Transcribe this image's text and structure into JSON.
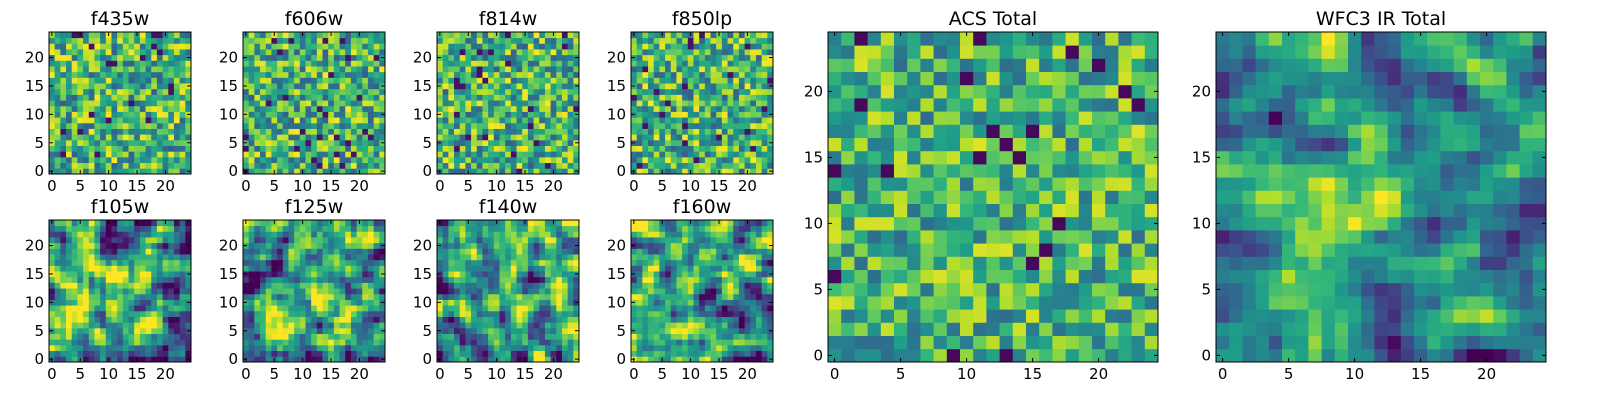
{
  "figure": {
    "background": "#ffffff",
    "colormap": "viridis"
  },
  "chart_data": [
    {
      "type": "heatmap",
      "title": "f435w",
      "xticks": [
        0,
        5,
        10,
        15,
        20
      ],
      "yticks": [
        0,
        5,
        10,
        15,
        20
      ],
      "xlim": [
        0,
        24
      ],
      "ylim": [
        0,
        24
      ],
      "seed": 11,
      "kind": "noise",
      "panel": "small-1"
    },
    {
      "type": "heatmap",
      "title": "f606w",
      "xticks": [
        0,
        5,
        10,
        15,
        20
      ],
      "yticks": [
        0,
        5,
        10,
        15,
        20
      ],
      "xlim": [
        0,
        24
      ],
      "ylim": [
        0,
        24
      ],
      "seed": 23,
      "kind": "noise",
      "panel": "small-2"
    },
    {
      "type": "heatmap",
      "title": "f814w",
      "xticks": [
        0,
        5,
        10,
        15,
        20
      ],
      "yticks": [
        0,
        5,
        10,
        15,
        20
      ],
      "xlim": [
        0,
        24
      ],
      "ylim": [
        0,
        24
      ],
      "seed": 37,
      "kind": "noise",
      "panel": "small-3"
    },
    {
      "type": "heatmap",
      "title": "f850lp",
      "xticks": [
        0,
        5,
        10,
        15,
        20
      ],
      "yticks": [
        0,
        5,
        10,
        15,
        20
      ],
      "xlim": [
        0,
        24
      ],
      "ylim": [
        0,
        24
      ],
      "seed": 41,
      "kind": "noise",
      "panel": "small-4"
    },
    {
      "type": "heatmap",
      "title": "f105w",
      "xticks": [
        0,
        5,
        10,
        15,
        20
      ],
      "yticks": [
        0,
        5,
        10,
        15,
        20
      ],
      "xlim": [
        0,
        24
      ],
      "ylim": [
        0,
        24
      ],
      "seed": 53,
      "kind": "smooth",
      "panel": "small-5"
    },
    {
      "type": "heatmap",
      "title": "f125w",
      "xticks": [
        0,
        5,
        10,
        15,
        20
      ],
      "yticks": [
        0,
        5,
        10,
        15,
        20
      ],
      "xlim": [
        0,
        24
      ],
      "ylim": [
        0,
        24
      ],
      "seed": 67,
      "kind": "smooth",
      "panel": "small-6"
    },
    {
      "type": "heatmap",
      "title": "f140w",
      "xticks": [
        0,
        5,
        10,
        15,
        20
      ],
      "yticks": [
        0,
        5,
        10,
        15,
        20
      ],
      "xlim": [
        0,
        24
      ],
      "ylim": [
        0,
        24
      ],
      "seed": 79,
      "kind": "smooth",
      "panel": "small-7"
    },
    {
      "type": "heatmap",
      "title": "f160w",
      "xticks": [
        0,
        5,
        10,
        15,
        20
      ],
      "yticks": [
        0,
        5,
        10,
        15,
        20
      ],
      "xlim": [
        0,
        24
      ],
      "ylim": [
        0,
        24
      ],
      "seed": 83,
      "kind": "smooth",
      "panel": "small-8"
    },
    {
      "type": "heatmap",
      "title": "ACS Total",
      "xticks": [
        0,
        5,
        10,
        15,
        20
      ],
      "yticks": [
        0,
        5,
        10,
        15,
        20
      ],
      "xlim": [
        0,
        24
      ],
      "ylim": [
        0,
        24
      ],
      "seed": 97,
      "kind": "noise-big",
      "panel": "large-1"
    },
    {
      "type": "heatmap",
      "title": "WFC3 IR Total",
      "xticks": [
        0,
        5,
        10,
        15,
        20
      ],
      "yticks": [
        0,
        5,
        10,
        15,
        20
      ],
      "xlim": [
        0,
        24
      ],
      "ylim": [
        0,
        24
      ],
      "seed": 101,
      "kind": "source",
      "panel": "large-2"
    }
  ]
}
